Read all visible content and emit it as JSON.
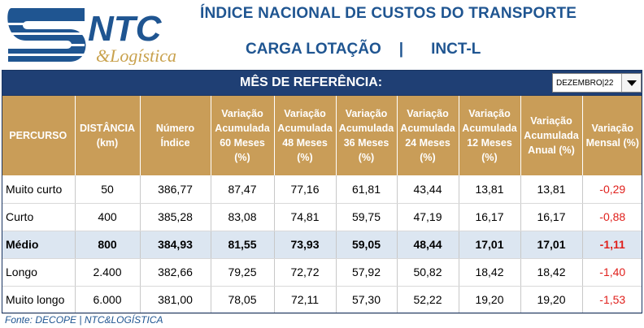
{
  "header": {
    "logo_text": "NTC",
    "logo_sub": "&Logística",
    "title": "ÍNDICE NACIONAL DE CUSTOS DO TRANSPORTE",
    "subtitle_left": "CARGA LOTAÇÃO",
    "subtitle_sep": "|",
    "subtitle_right": "INCT-L"
  },
  "reference": {
    "label": "MÊS DE REFERÊNCIA:",
    "selected": "DEZEMBRO|22"
  },
  "table": {
    "columns": [
      "PERCURSO",
      "DISTÂNCIA (km)",
      "Número Índice",
      "Variação Acumulada 60 Meses (%)",
      "Variação Acumulada 48 Meses (%)",
      "Variação Acumulada 36 Meses (%)",
      "Variação Acumulada 24 Meses (%)",
      "Variação Acumulada 12 Meses (%)",
      "Variação Acumulada Anual  (%)",
      "Variação Mensal (%)"
    ],
    "rows": [
      [
        "Muito curto",
        "50",
        "386,77",
        "87,47",
        "77,16",
        "61,81",
        "43,44",
        "13,81",
        "13,81",
        "-0,29"
      ],
      [
        "Curto",
        "400",
        "385,28",
        "83,08",
        "74,81",
        "59,75",
        "47,19",
        "16,17",
        "16,17",
        "-0,88"
      ],
      [
        "Médio",
        "800",
        "384,93",
        "81,55",
        "73,93",
        "59,05",
        "48,44",
        "17,01",
        "17,01",
        "-1,11"
      ],
      [
        "Longo",
        "2.400",
        "382,66",
        "79,25",
        "72,72",
        "57,92",
        "50,82",
        "18,42",
        "18,42",
        "-1,40"
      ],
      [
        "Muito longo",
        "6.000",
        "381,00",
        "78,05",
        "72,11",
        "57,30",
        "52,22",
        "19,20",
        "19,20",
        "-1,53"
      ]
    ]
  },
  "source": "Fonte: DECOPE | NTC&LOGÍSTICA",
  "colors": {
    "brand_blue": "#1f5591",
    "header_bar": "#1f3f74",
    "column_header": "#c99d58",
    "highlight_row": "#dce6f1",
    "negative": "#e0201c"
  }
}
